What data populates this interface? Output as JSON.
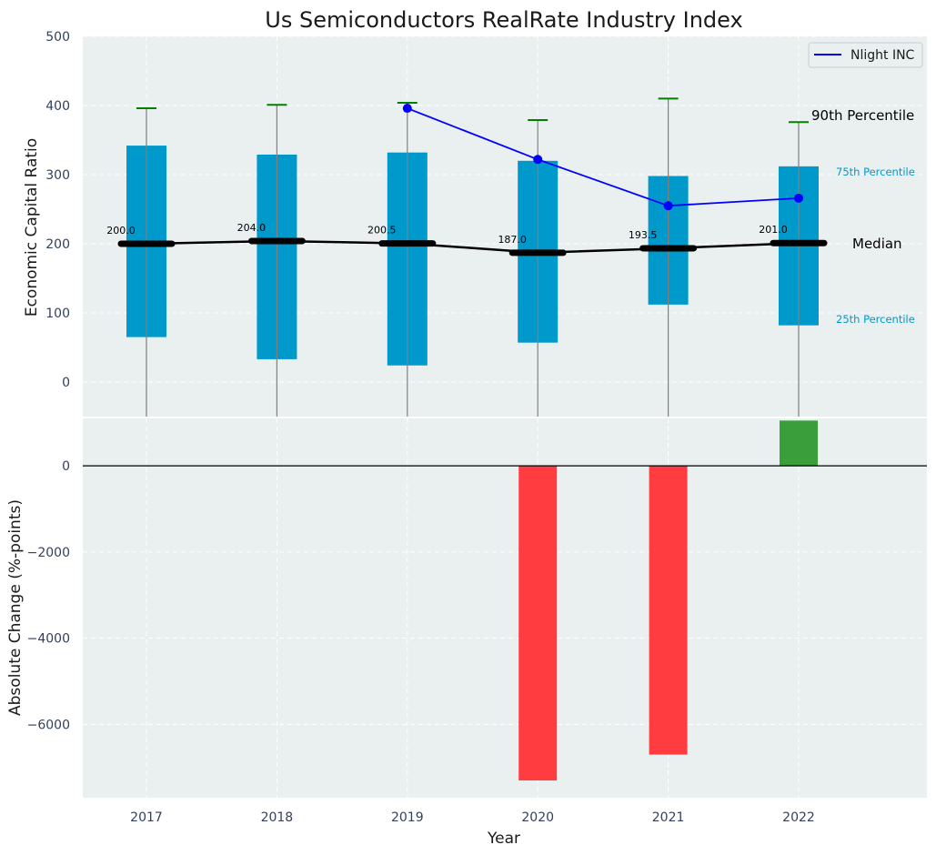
{
  "chart_data": [
    {
      "type": "box",
      "title": "Us Semiconductors RealRate Industry Index",
      "xlabel": "",
      "ylabel": "Economic Capital Ratio",
      "ylim": [
        -50,
        500
      ],
      "yticks": [
        0,
        100,
        200,
        300,
        400,
        500
      ],
      "categories": [
        "2017",
        "2018",
        "2019",
        "2020",
        "2021",
        "2022"
      ],
      "p25": [
        65,
        33,
        24,
        57,
        112,
        82
      ],
      "p75": [
        342,
        329,
        332,
        320,
        298,
        312
      ],
      "p90": [
        396,
        401,
        404,
        379,
        410,
        376
      ],
      "median": [
        200.0,
        204.0,
        200.5,
        187.0,
        193.5,
        201.0
      ],
      "median_labels": [
        "200.0",
        "204.0",
        "200.5",
        "187.0",
        "193.5",
        "201.0"
      ],
      "series": [
        {
          "name": "Nlight INC",
          "categories": [
            "2019",
            "2020",
            "2021",
            "2022"
          ],
          "values": [
            396,
            322,
            255,
            266
          ],
          "color": "#0000ff"
        }
      ],
      "annotations": {
        "p90": "90th Percentile",
        "p75": "75th Percentile",
        "median": "Median",
        "p25": "25th Percentile"
      },
      "legend_position": "top-right",
      "grid": true,
      "colors": {
        "box": "#0099cc",
        "whisker": "#808080",
        "cap": "#008000",
        "median": "#000000",
        "background": "#eaeff0"
      }
    },
    {
      "type": "bar",
      "xlabel": "Year",
      "ylabel": "Absolute Change (%-points)",
      "ylim": [
        -7700,
        1100
      ],
      "yticks": [
        -6000,
        -4000,
        -2000,
        0
      ],
      "ytick_labels": [
        "−6000",
        "−4000",
        "−2000",
        "0"
      ],
      "categories": [
        "2017",
        "2018",
        "2019",
        "2020",
        "2021",
        "2022"
      ],
      "values": [
        0,
        0,
        0,
        -7300,
        -6700,
        1050
      ],
      "grid": true,
      "colors": {
        "positive": "#3a9e3a",
        "negative": "#ff3c3f",
        "zero_line": "#000000"
      }
    }
  ]
}
